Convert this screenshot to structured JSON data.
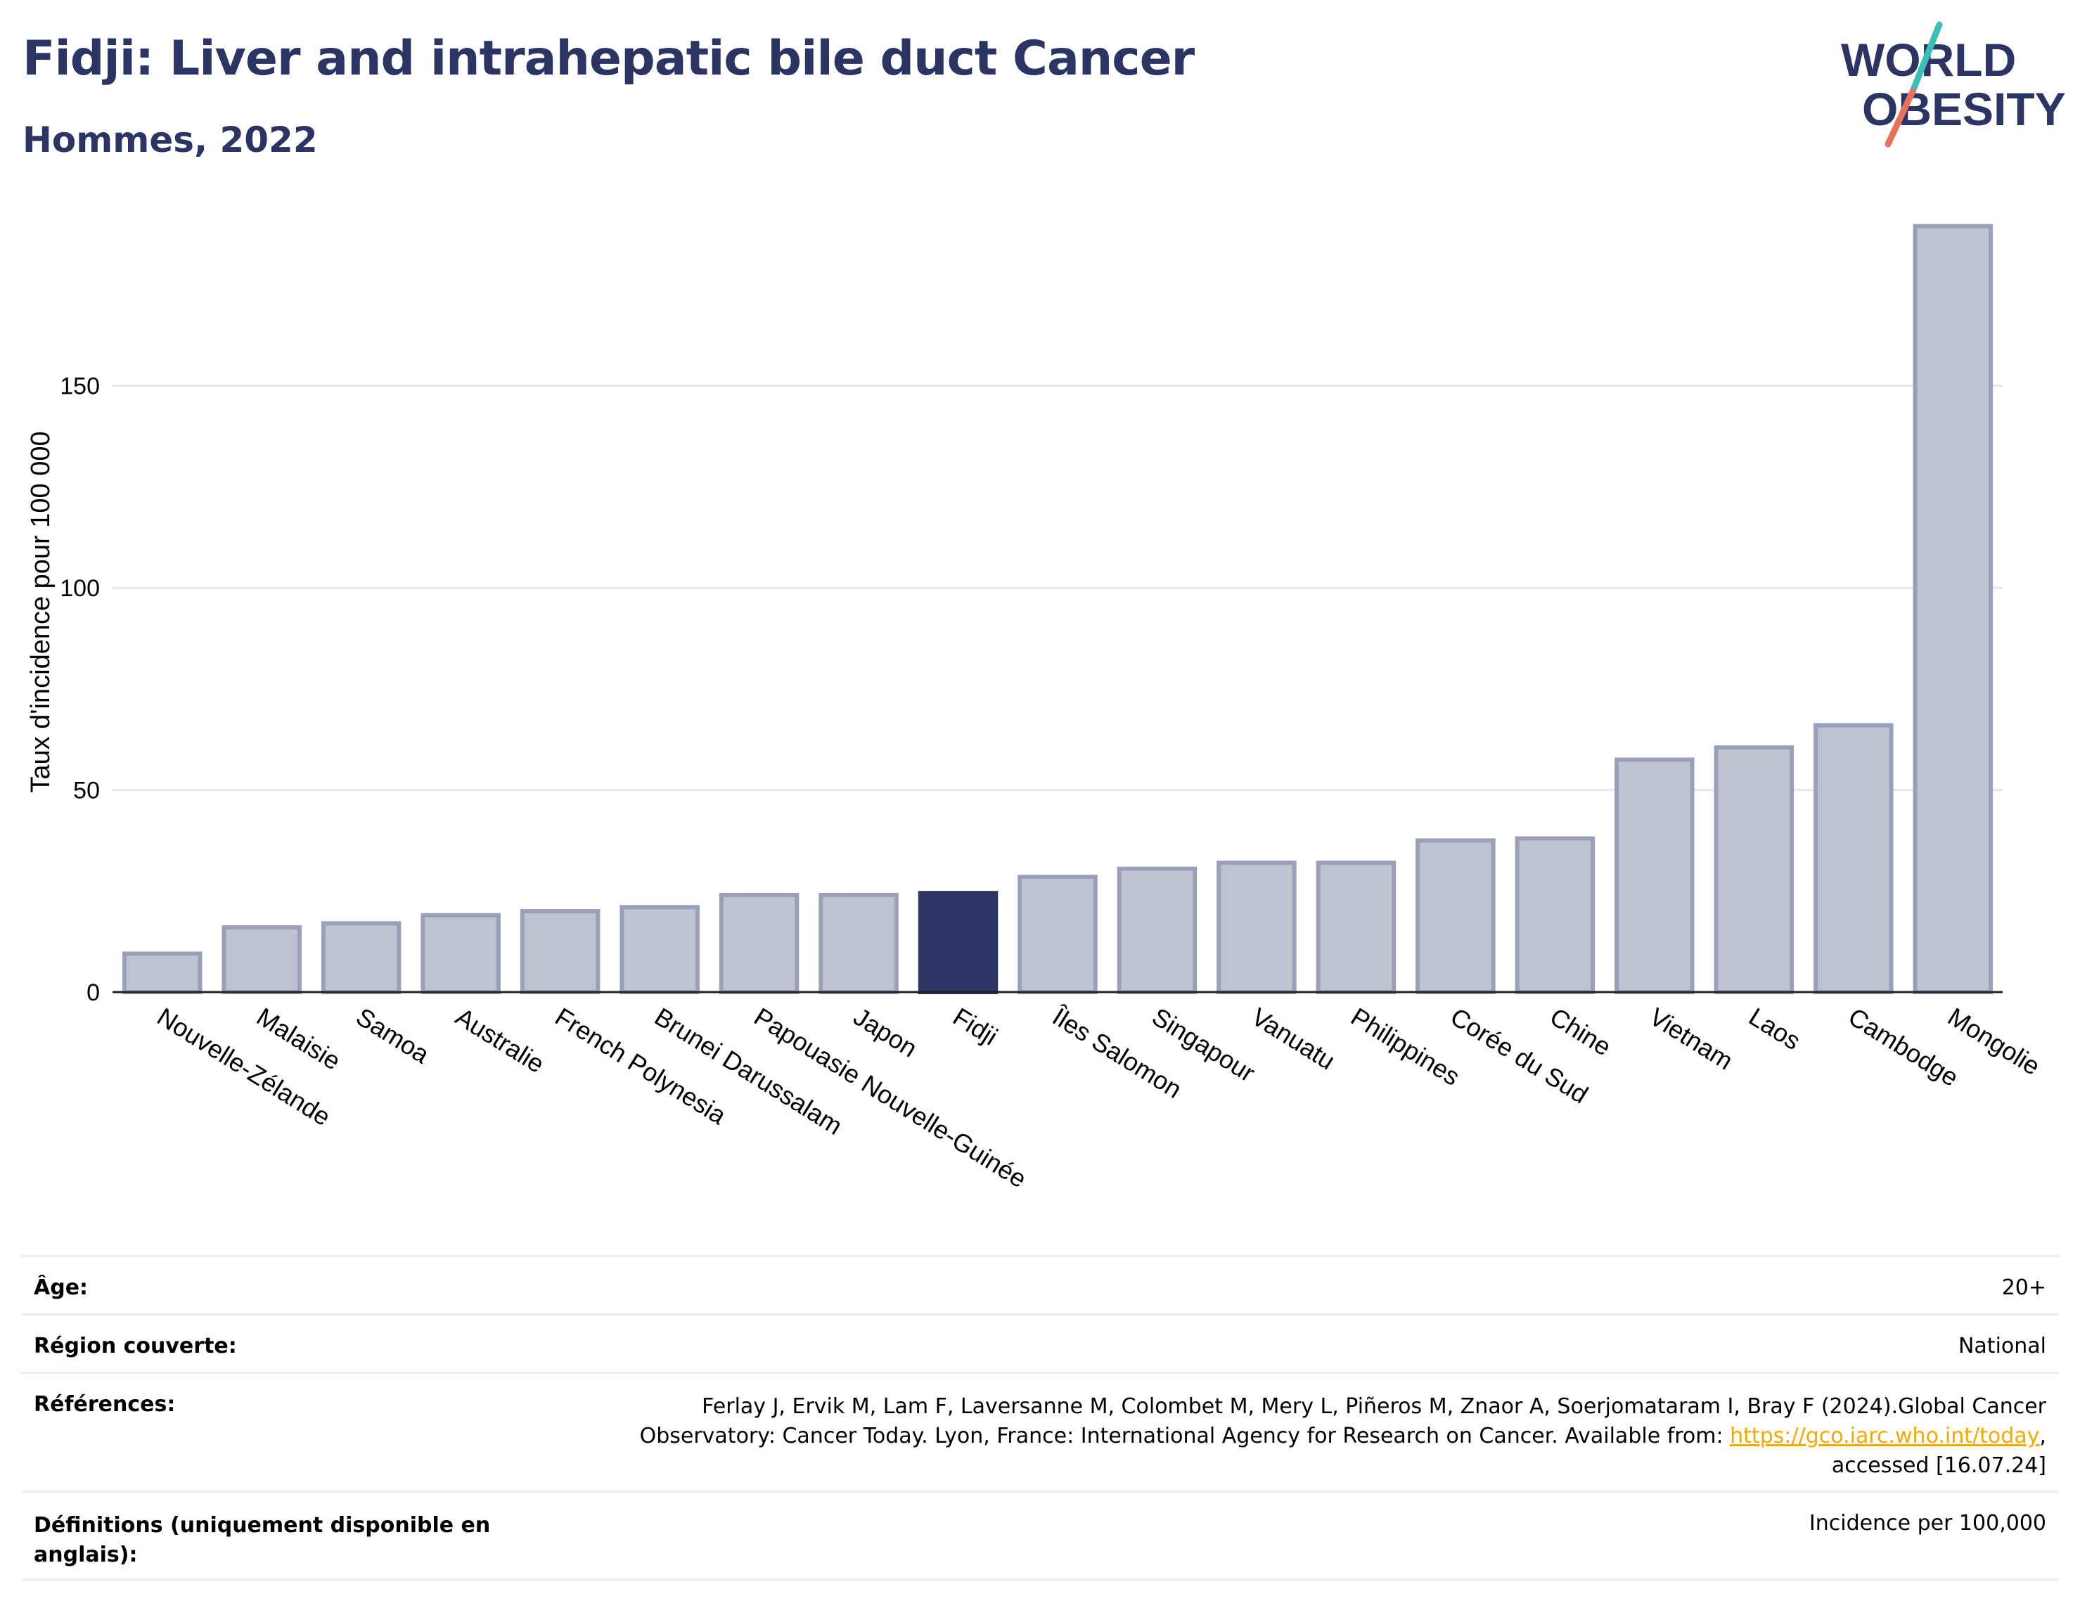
{
  "header": {
    "title": "Fidji: Liver and intrahepatic bile duct Cancer",
    "subtitle": "Hommes, 2022"
  },
  "logo": {
    "line1": "WORLD",
    "line2": "OBESITY",
    "colors": {
      "text": "#2b3462",
      "slash_teal": "#3bbfb5",
      "slash_coral": "#e8705e"
    }
  },
  "chart_data": {
    "type": "bar",
    "ylabel": "Taux d'incidence pour 100 000",
    "xlabel": "",
    "ylim": [
      0,
      195
    ],
    "yticks": [
      0,
      50,
      100,
      150
    ],
    "grid": true,
    "highlight_category": "Fidji",
    "colors": {
      "default": "#bfc3d0",
      "default_border": "#9aa0b8",
      "highlight": "#2b3462"
    },
    "categories": [
      "Nouvelle-Zélande",
      "Malaisie",
      "Samoa",
      "Australie",
      "French Polynesia",
      "Brunei Darussalam",
      "Papouasie Nouvelle-Guinée",
      "Japon",
      "Fidji",
      "Îles Salomon",
      "Singapour",
      "Vanuatu",
      "Philippines",
      "Corée du Sud",
      "Chine",
      "Vietnam",
      "Laos",
      "Cambodge",
      "Mongolie"
    ],
    "values": [
      9.5,
      16.0,
      17.0,
      19.0,
      20.0,
      21.0,
      24.0,
      24.0,
      24.5,
      28.5,
      30.5,
      32.0,
      32.0,
      37.5,
      38.0,
      57.5,
      60.5,
      66.0,
      189.5
    ]
  },
  "info_table": [
    {
      "label": "Âge:",
      "value": "20+"
    },
    {
      "label": "Région couverte:",
      "value": "National"
    },
    {
      "label": "Références:",
      "value_lines": [
        "Ferlay J, Ervik M, Lam F, Laversanne M, Colombet M, Mery L, Piñeros M, Znaor A, Soerjomataram I, Bray F (2024).Global Cancer",
        "Observatory: Cancer Today. Lyon, France: International Agency for Research on Cancer. Available from: ",
        "accessed [16.07.24]"
      ],
      "link_text": "https://gco.iarc.who.int/today",
      "link_suffix": ","
    },
    {
      "label_lines": [
        "Définitions (uniquement disponible en",
        "anglais):"
      ],
      "value": "Incidence per 100,000"
    }
  ]
}
